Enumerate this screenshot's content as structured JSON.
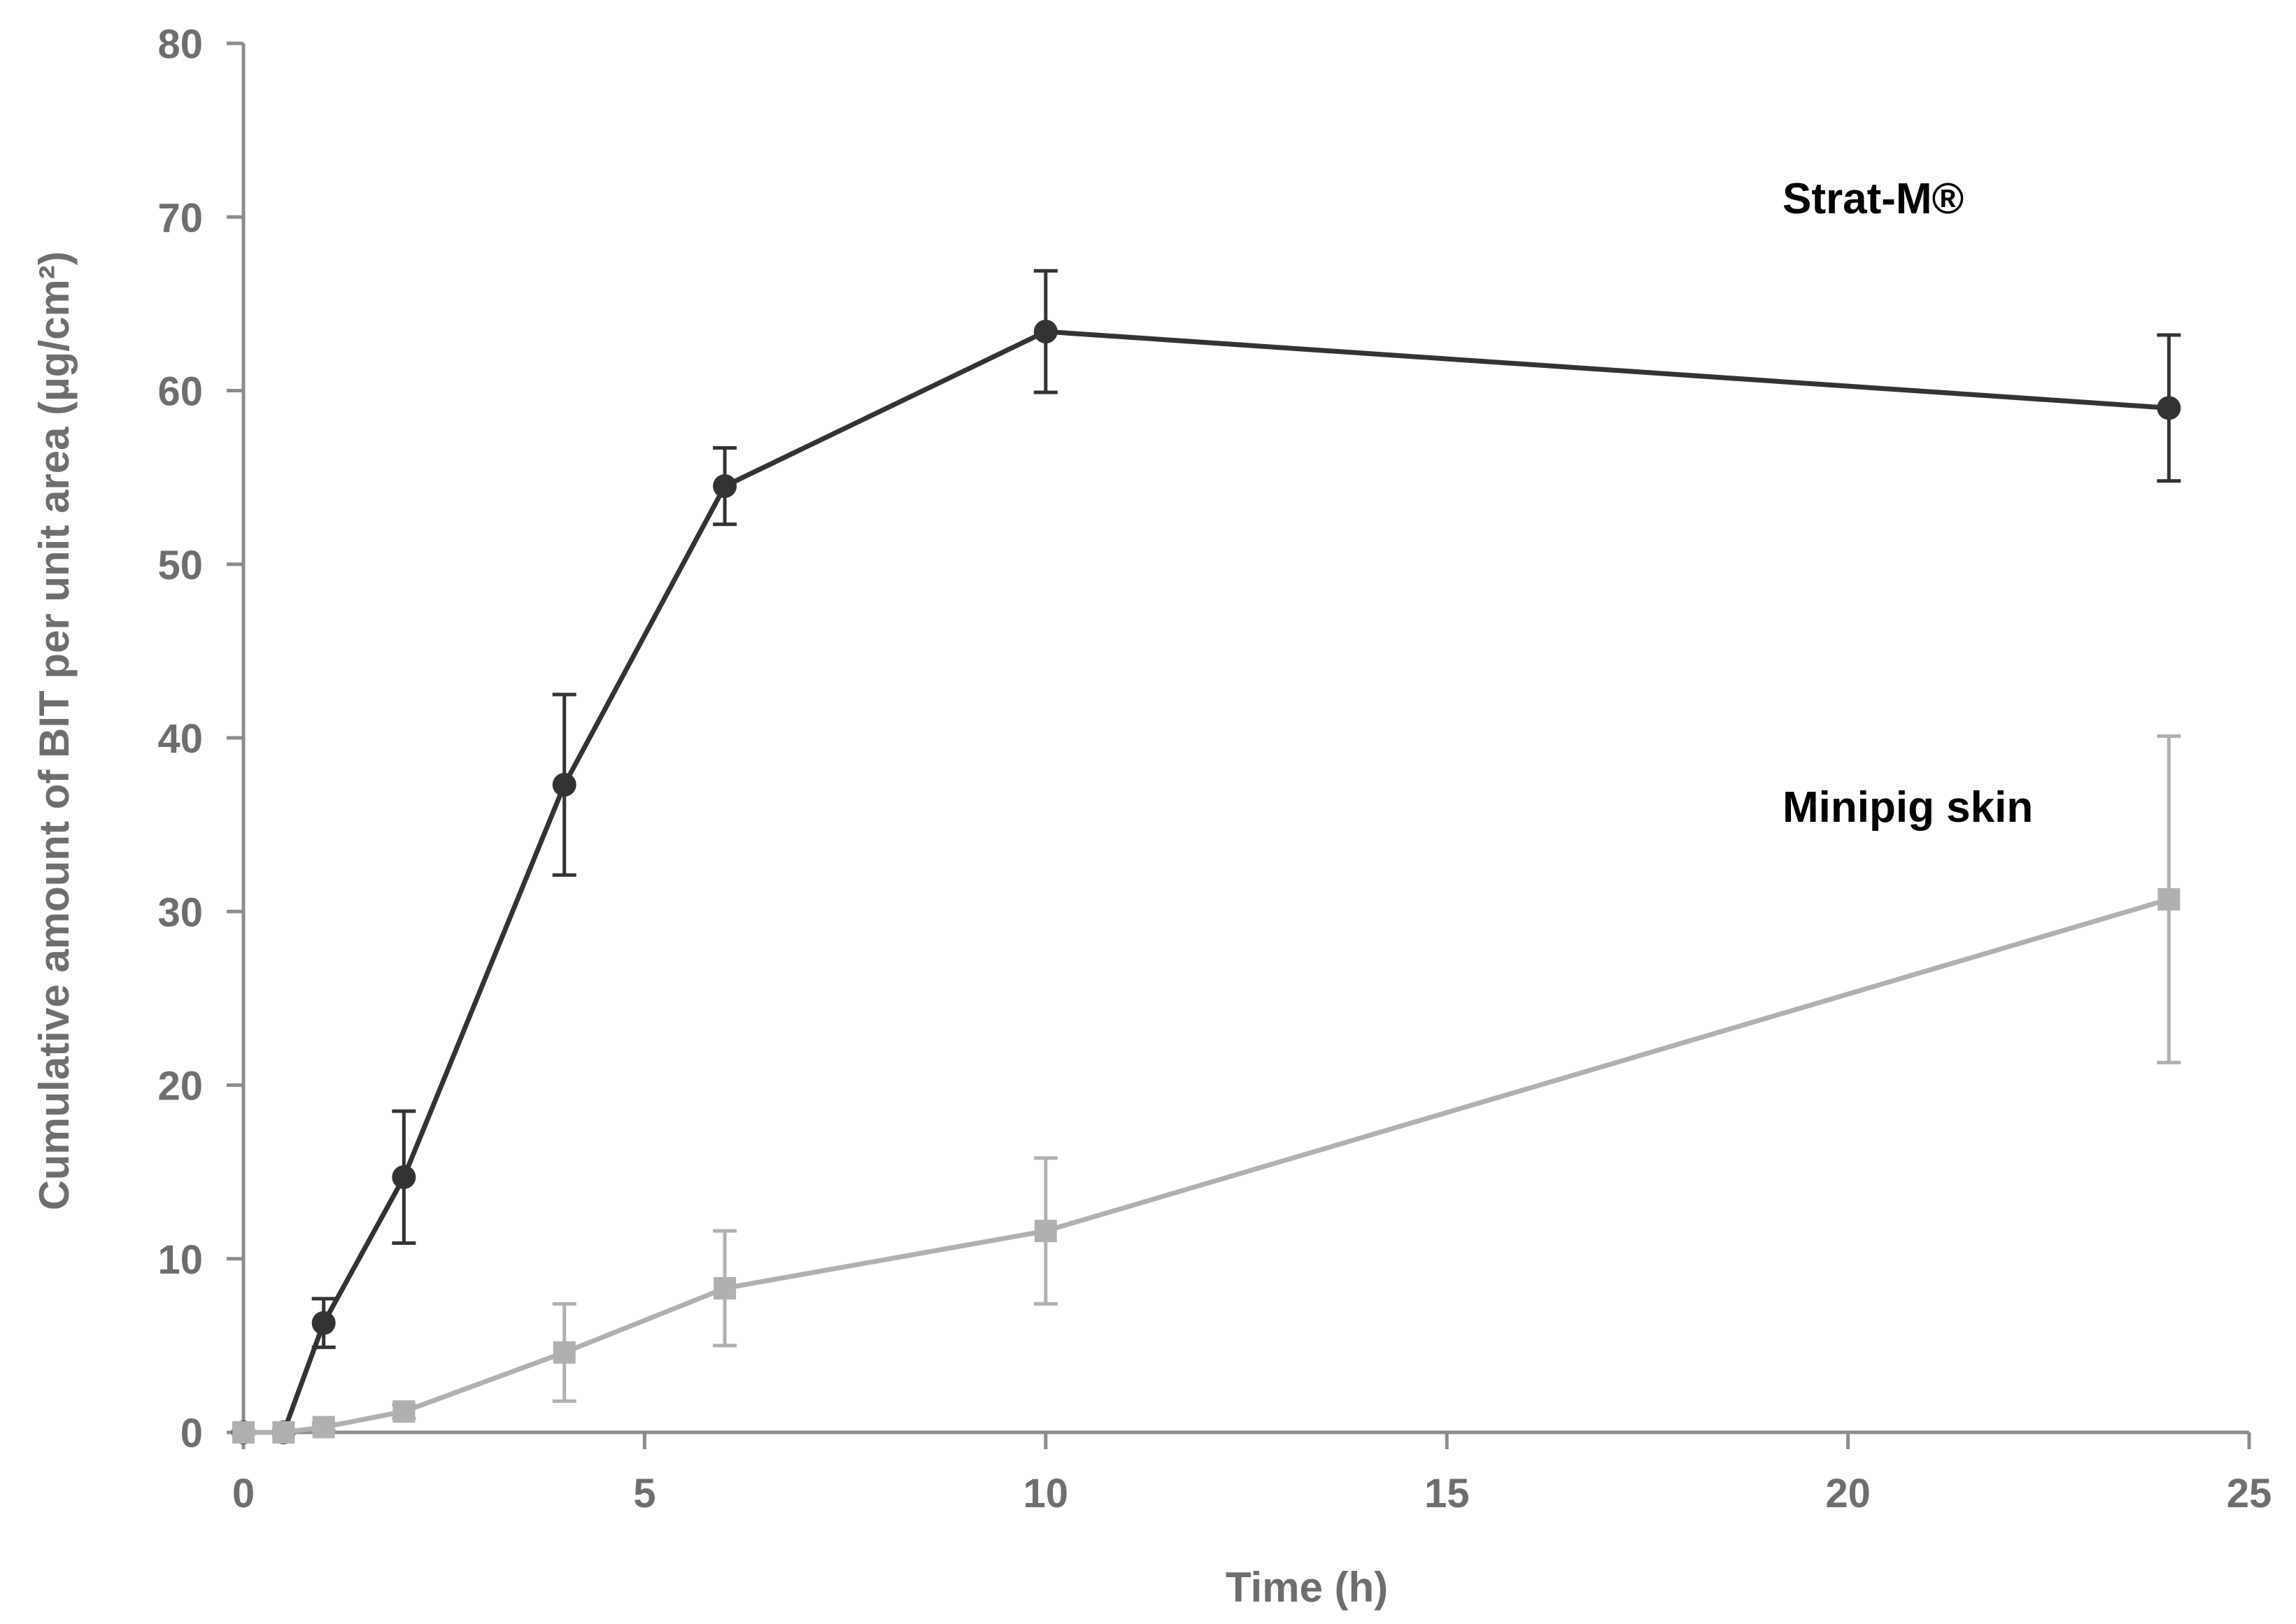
{
  "chart_data": {
    "type": "line",
    "title": "",
    "xlabel": "Time (h)",
    "ylabel": "Cumulative amount of BIT per unit area (µg/cm²)",
    "xlim": [
      0,
      25
    ],
    "ylim": [
      0,
      80
    ],
    "xticks": [
      0,
      5,
      10,
      15,
      20,
      25
    ],
    "yticks": [
      0,
      10,
      20,
      30,
      40,
      50,
      60,
      70,
      80
    ],
    "grid": false,
    "series": [
      {
        "name": "Strat-M®",
        "label": "Strat-M®",
        "color": "#333333",
        "marker": "circle",
        "x": [
          0,
          0.5,
          1,
          2,
          4,
          6,
          10,
          24
        ],
        "y": [
          0,
          0,
          6.3,
          14.7,
          37.3,
          54.5,
          63.4,
          59.0
        ],
        "err": [
          0,
          0,
          1.4,
          3.8,
          5.2,
          2.2,
          3.5,
          4.2
        ]
      },
      {
        "name": "Minipig skin",
        "label": "Minipig skin",
        "color": "#b0b0b0",
        "marker": "square",
        "x": [
          0,
          0.5,
          1,
          2,
          4,
          6,
          10,
          24
        ],
        "y": [
          0,
          0,
          0.3,
          1.2,
          4.6,
          8.3,
          11.6,
          30.7
        ],
        "err": [
          0,
          0,
          0.2,
          0.4,
          2.8,
          3.3,
          4.2,
          9.4
        ]
      }
    ]
  }
}
